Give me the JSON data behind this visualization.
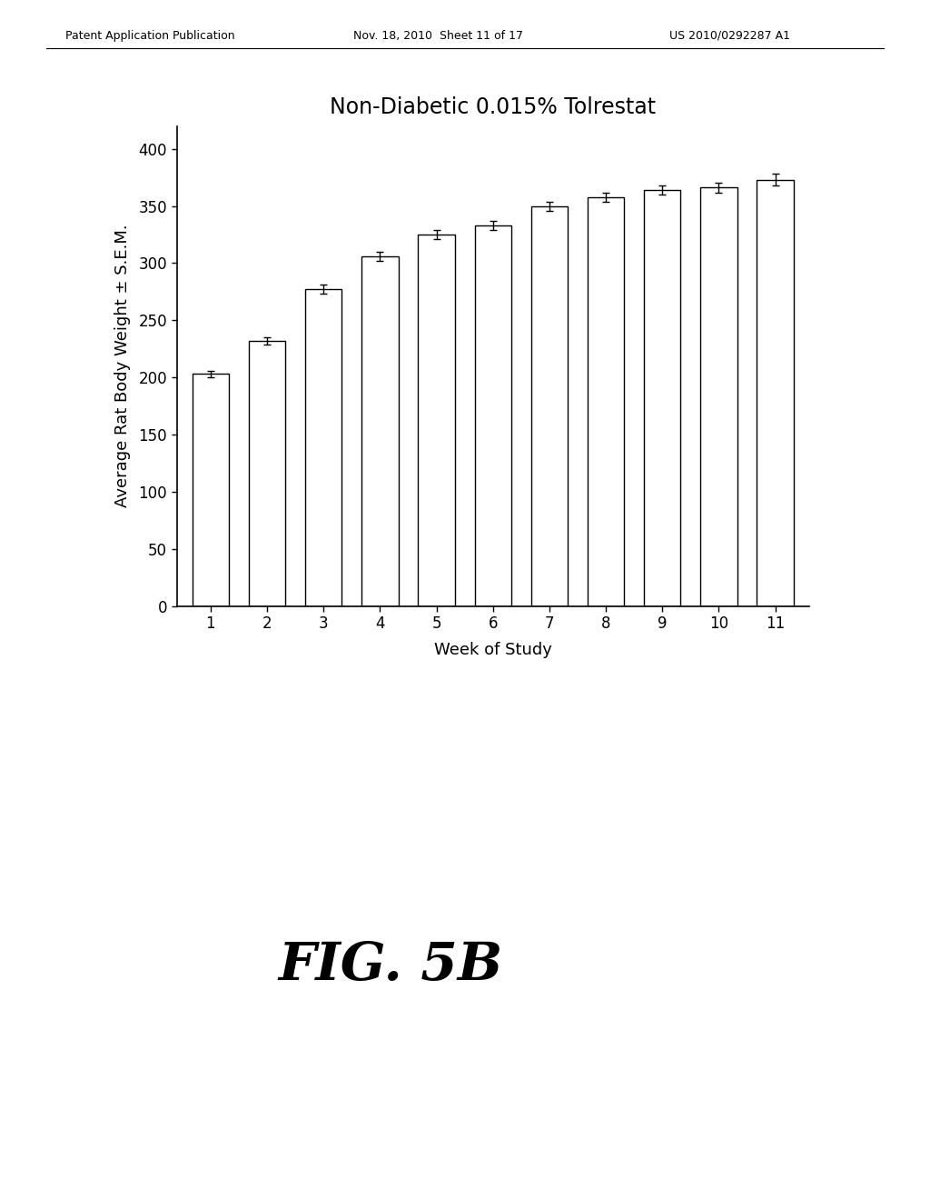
{
  "title": "Non-Diabetic 0.015% Tolrestat",
  "xlabel": "Week of Study",
  "ylabel": "Average Rat Body Weight ± S.E.M.",
  "weeks": [
    1,
    2,
    3,
    4,
    5,
    6,
    7,
    8,
    9,
    10,
    11
  ],
  "values": [
    203,
    232,
    277,
    306,
    325,
    333,
    350,
    358,
    364,
    366,
    373
  ],
  "errors": [
    3,
    3,
    4,
    4,
    4,
    4,
    4,
    4,
    4,
    4,
    5
  ],
  "ylim": [
    0,
    420
  ],
  "yticks": [
    0,
    50,
    100,
    150,
    200,
    250,
    300,
    350,
    400
  ],
  "bar_color": "white",
  "bar_edgecolor": "black",
  "bar_width": 0.65,
  "header_left": "Patent Application Publication",
  "header_mid": "Nov. 18, 2010  Sheet 11 of 17",
  "header_right": "US 2010/0292287 A1",
  "fig_label": "FIG. 5B",
  "background_color": "white",
  "title_fontsize": 17,
  "axis_label_fontsize": 13,
  "tick_fontsize": 12,
  "header_fontsize": 9,
  "fig_label_fontsize": 42
}
